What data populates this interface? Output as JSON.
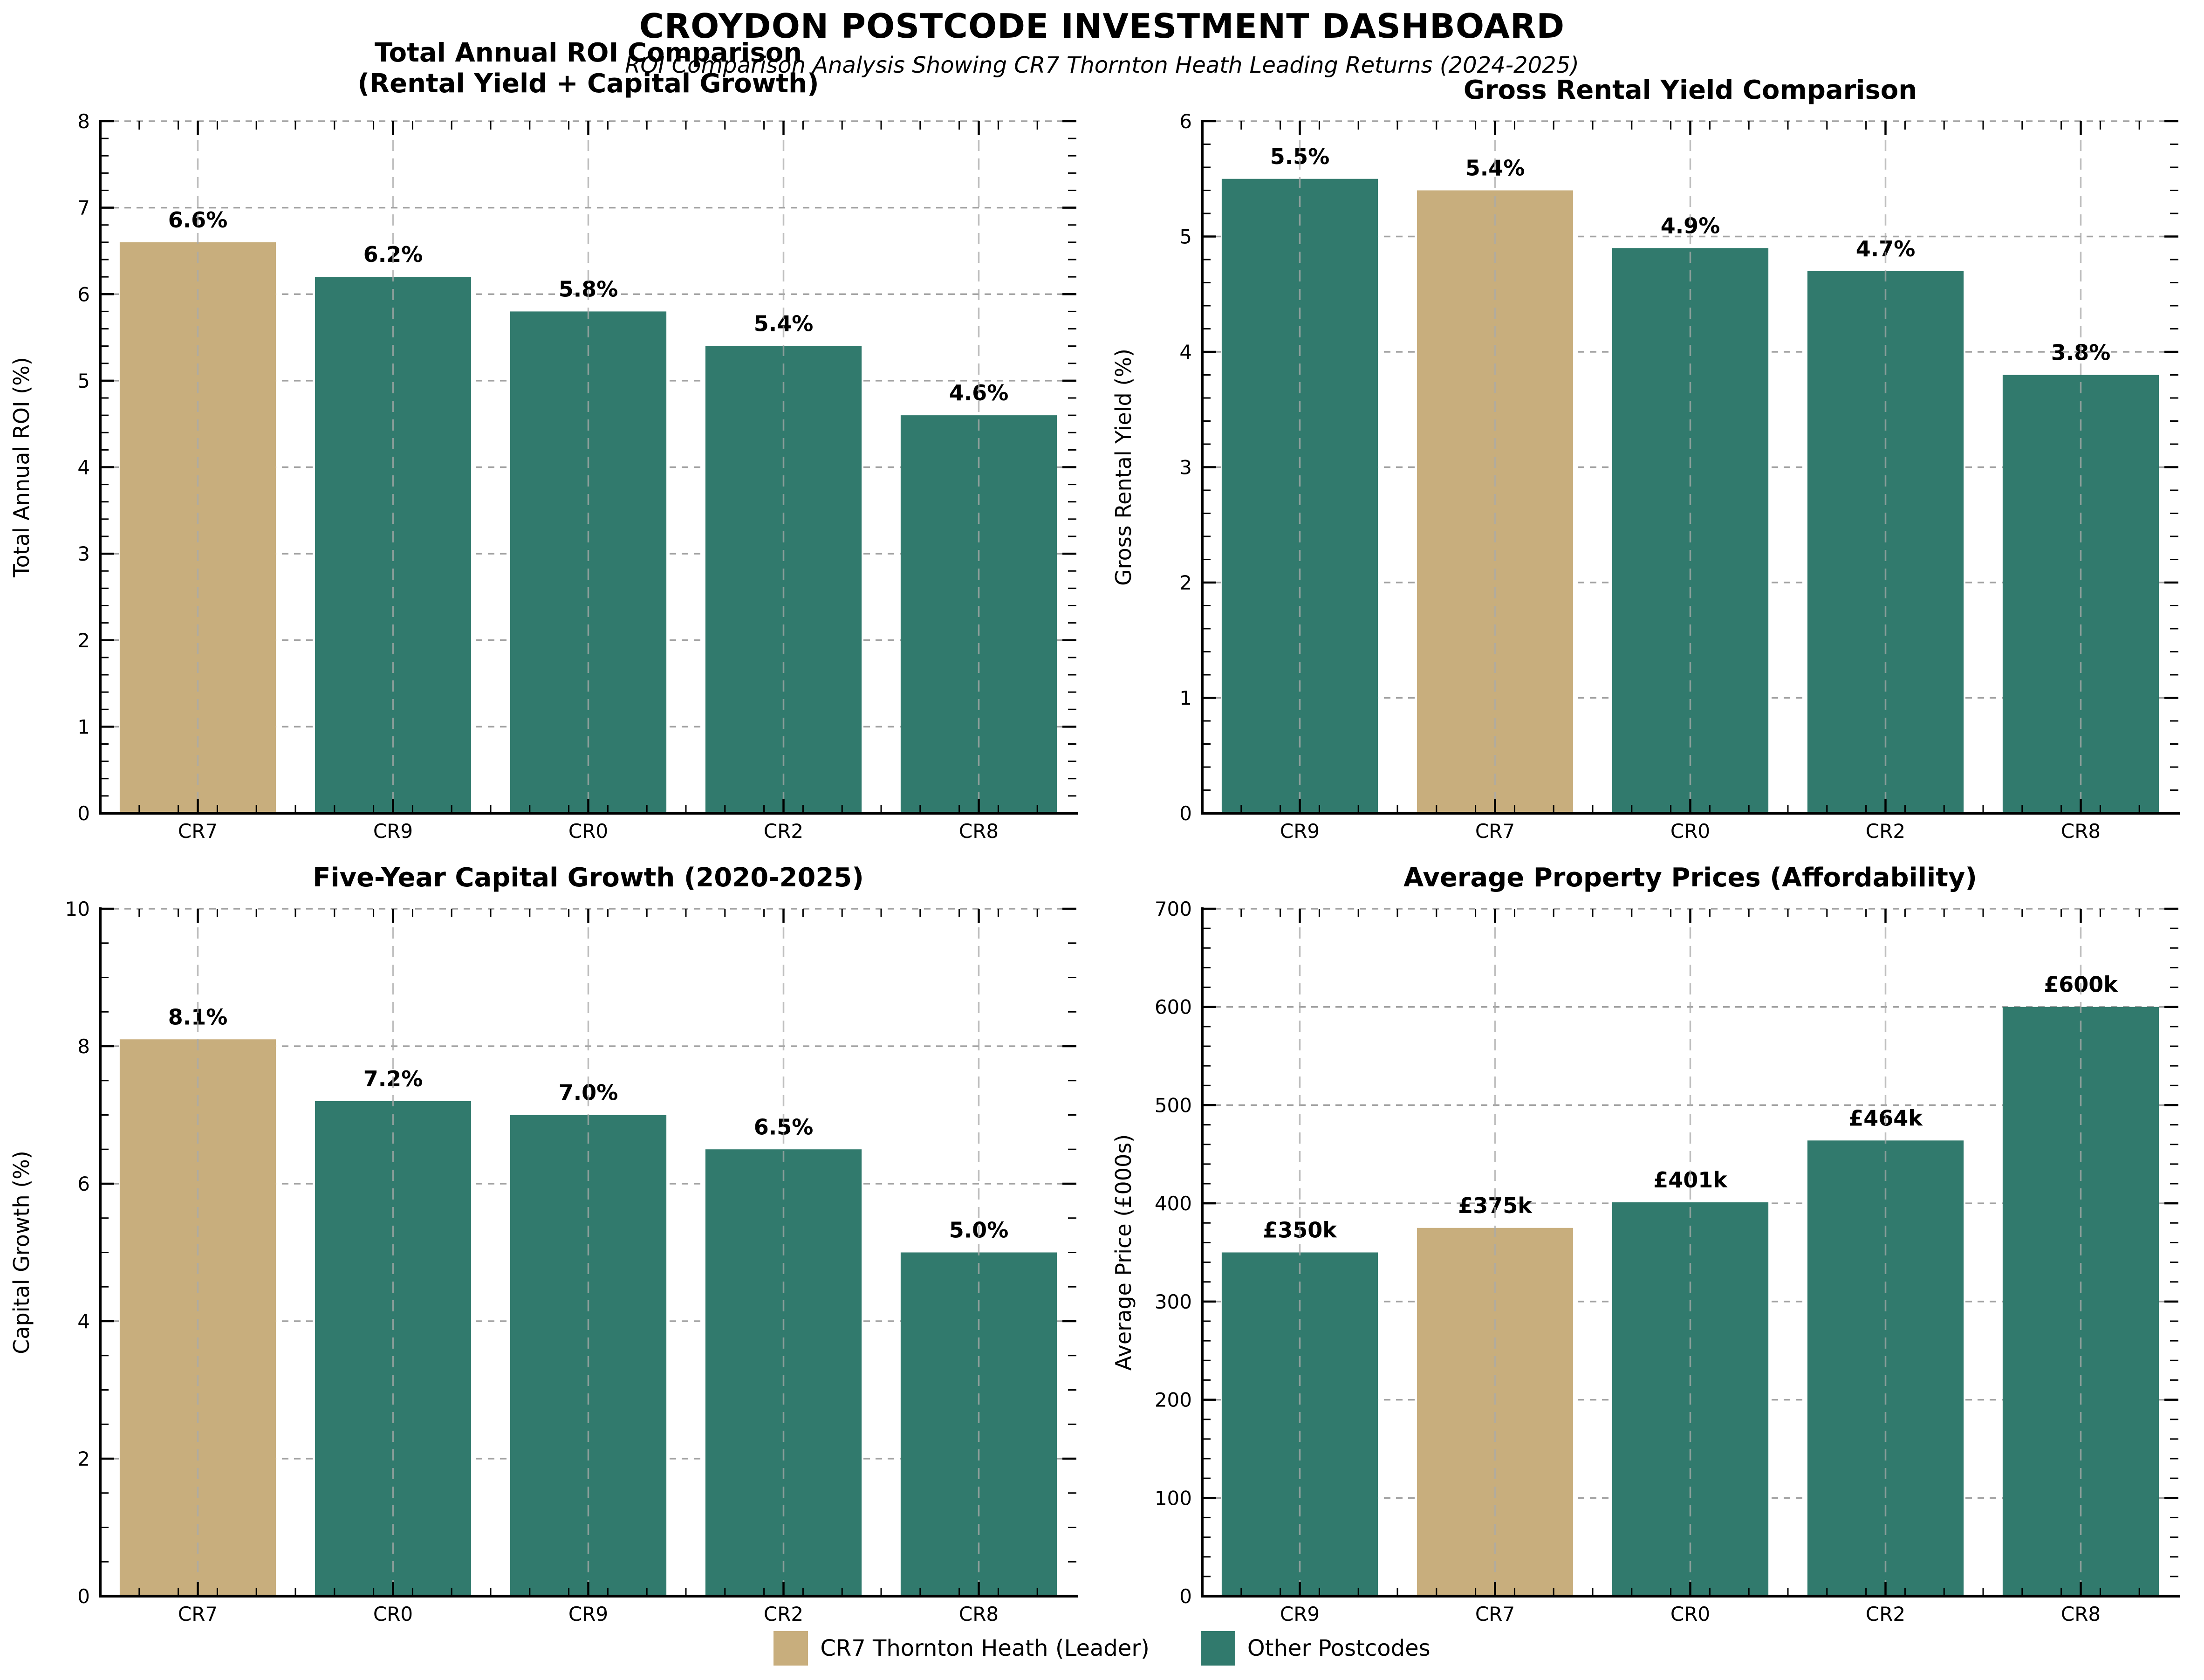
{
  "header": {
    "title": "CROYDON POSTCODE INVESTMENT DASHBOARD",
    "subtitle": "ROI Comparison Analysis Showing CR7 Thornton Heath Leading Returns (2024-2025)"
  },
  "colors": {
    "leader": "#C8AE7D",
    "other": "#317A6D",
    "grid": "#999999",
    "text": "#000000",
    "background": "#FFFFFF"
  },
  "legend": {
    "items": [
      {
        "label": "CR7 Thornton Heath (Leader)",
        "color": "#C8AE7D"
      },
      {
        "label": "Other Postcodes",
        "color": "#317A6D"
      }
    ]
  },
  "chart_data": [
    {
      "type": "bar",
      "title_lines": [
        "Total Annual ROI Comparison",
        "(Rental Yield + Capital Growth)"
      ],
      "ylabel": "Total Annual ROI (%)",
      "xlabel": "",
      "ylim": [
        0,
        8
      ],
      "ytick_step": 1,
      "y_minor_divisions": 5,
      "grid": "on",
      "categories": [
        "CR7",
        "CR9",
        "CR0",
        "CR2",
        "CR8"
      ],
      "values": [
        6.6,
        6.2,
        5.8,
        5.4,
        4.6
      ],
      "bar_labels": [
        "6.6%",
        "6.2%",
        "5.8%",
        "5.4%",
        "4.6%"
      ],
      "leader_index": 0
    },
    {
      "type": "bar",
      "title_lines": [
        "Gross Rental Yield Comparison"
      ],
      "ylabel": "Gross Rental Yield (%)",
      "xlabel": "",
      "ylim": [
        0,
        6
      ],
      "ytick_step": 1,
      "y_minor_divisions": 5,
      "grid": "on",
      "categories": [
        "CR9",
        "CR7",
        "CR0",
        "CR2",
        "CR8"
      ],
      "values": [
        5.5,
        5.4,
        4.9,
        4.7,
        3.8
      ],
      "bar_labels": [
        "5.5%",
        "5.4%",
        "4.9%",
        "4.7%",
        "3.8%"
      ],
      "leader_index": 1
    },
    {
      "type": "bar",
      "title_lines": [
        "Five-Year Capital Growth (2020-2025)"
      ],
      "ylabel": "Capital Growth (%)",
      "xlabel": "",
      "ylim": [
        0,
        10
      ],
      "ytick_step": 2,
      "y_minor_divisions": 4,
      "grid": "on",
      "categories": [
        "CR7",
        "CR0",
        "CR9",
        "CR2",
        "CR8"
      ],
      "values": [
        8.1,
        7.2,
        7.0,
        6.5,
        5.0
      ],
      "bar_labels": [
        "8.1%",
        "7.2%",
        "7.0%",
        "6.5%",
        "5.0%"
      ],
      "leader_index": 0
    },
    {
      "type": "bar",
      "title_lines": [
        "Average Property Prices (Affordability)"
      ],
      "ylabel": "Average Price (£000s)",
      "xlabel": "",
      "ylim": [
        0,
        700
      ],
      "ytick_step": 100,
      "y_minor_divisions": 5,
      "grid": "on",
      "categories": [
        "CR9",
        "CR7",
        "CR0",
        "CR2",
        "CR8"
      ],
      "values": [
        350,
        375,
        401,
        464,
        600
      ],
      "bar_labels": [
        "£350k",
        "£375k",
        "£401k",
        "£464k",
        "£600k"
      ],
      "leader_index": 1
    }
  ]
}
